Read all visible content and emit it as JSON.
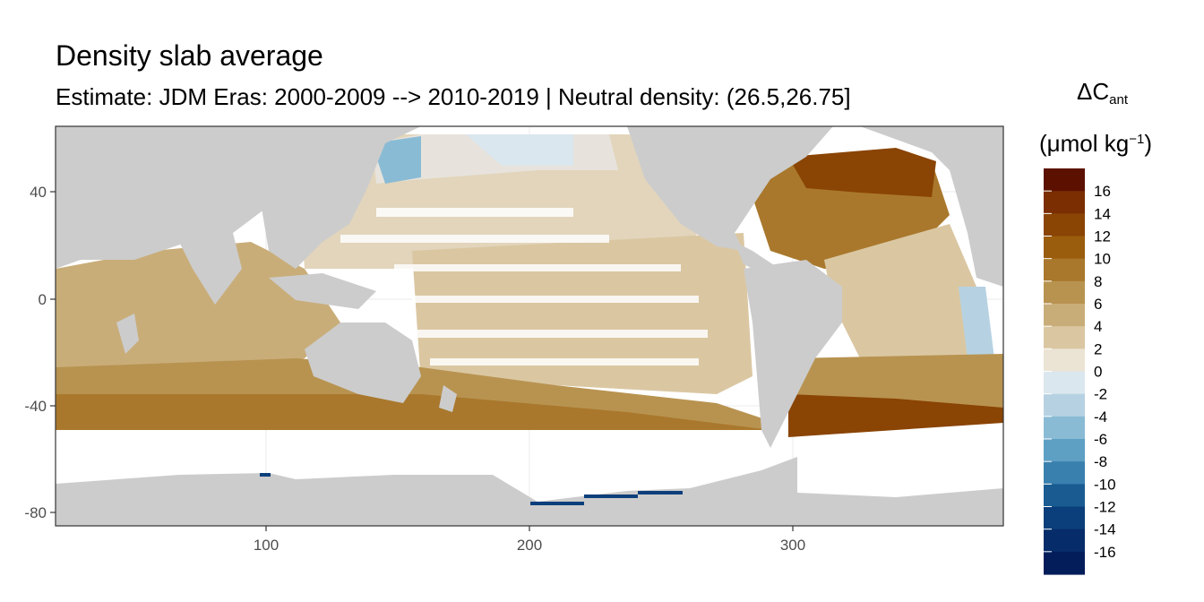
{
  "title": "Density slab average",
  "subtitle": "Estimate: JDM Eras: 2000-2009 --> 2010-2019 | Neutral density: (26.5,26.75]",
  "legend": {
    "symbol": "ΔC",
    "symbol_sub": "ant",
    "unit_open": "(μmol kg",
    "unit_sup": "−1",
    "unit_close": ")",
    "breaks": [
      "16",
      "14",
      "12",
      "10",
      "8",
      "6",
      "4",
      "2",
      "0",
      "-2",
      "-4",
      "-6",
      "-8",
      "-10",
      "-12",
      "-14",
      "-16"
    ],
    "colors": [
      "#5c1100",
      "#7a2e02",
      "#8a4404",
      "#9a5d0d",
      "#a9782c",
      "#b89350",
      "#c9ad79",
      "#dac7a2",
      "#ebe4d4",
      "#dbe7ee",
      "#b6d2e2",
      "#8abbd5",
      "#5e9fc4",
      "#3a80ae",
      "#1a5c92",
      "#0b3f7b",
      "#062d6a",
      "#031d5a"
    ]
  },
  "axes": {
    "x_ticks": [
      "100",
      "200",
      "300"
    ],
    "y_ticks": [
      "40",
      "0",
      "-40",
      "-80"
    ]
  },
  "colors": {
    "land": "#cccccc",
    "no_data": "#ffffff",
    "grid": "#ebebeb",
    "panel_border": "#333333"
  }
}
